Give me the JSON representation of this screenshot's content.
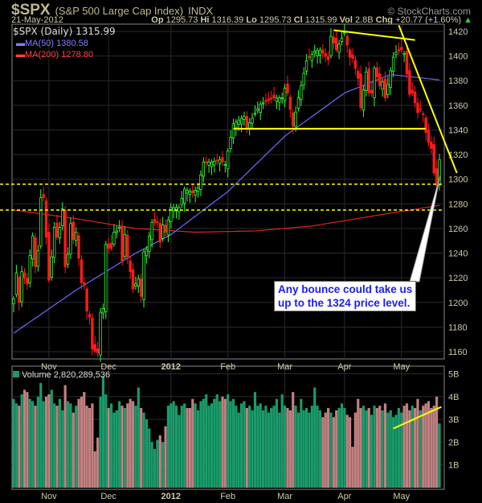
{
  "header": {
    "symbol": "$SPX",
    "name": "(S&P 500 Large Cap Index)",
    "exchange": "INDX",
    "brand": "© StockCharts.com",
    "date": "21-May-2012",
    "op_label": "Op",
    "op": "1295.73",
    "hi_label": "Hi",
    "hi": "1316.39",
    "lo_label": "Lo",
    "lo": "1295.73",
    "cl_label": "Cl",
    "cl": "1315.99",
    "vol_label": "Vol",
    "vol": "2.8B",
    "chg_label": "Chg",
    "chg": "+20.77 (+1.60%)"
  },
  "colors": {
    "up": "#33ff33",
    "down": "#ff1a1a",
    "ma50": "#6b6bff",
    "ma200": "#e02020",
    "annotation": "#ffff00",
    "vol_up": "#1a9a6a",
    "vol_down": "#c08080",
    "callout_text": "#1a1aff"
  },
  "chart_data": [
    {
      "type": "candlestick",
      "title": "$SPX (Daily) 1315.99",
      "legend": [
        {
          "name": "MA(50) 1380.58"
        },
        {
          "name": "MA(200) 1278.80"
        }
      ],
      "ylim": [
        1150,
        1430
      ],
      "yticks": [
        1160,
        1180,
        1200,
        1220,
        1240,
        1260,
        1280,
        1300,
        1320,
        1340,
        1360,
        1380,
        1400,
        1420
      ],
      "xticks": [
        {
          "label": "Nov",
          "date": "2011-11-01"
        },
        {
          "label": "Dec",
          "date": "2011-12-01"
        },
        {
          "label": "2012",
          "date": "2012-01-03"
        },
        {
          "label": "Feb",
          "date": "2012-02-01"
        },
        {
          "label": "Mar",
          "date": "2012-03-01"
        },
        {
          "label": "Apr",
          "date": "2012-04-02"
        },
        {
          "label": "May",
          "date": "2012-05-01"
        }
      ],
      "start": "2011-10-13",
      "end": "2012-05-21",
      "grid": true,
      "close_points": [
        [
          "2011-10-13",
          1203
        ],
        [
          "2011-10-14",
          1224
        ],
        [
          "2011-10-17",
          1200
        ],
        [
          "2011-10-18",
          1225
        ],
        [
          "2011-10-20",
          1215
        ],
        [
          "2011-10-21",
          1238
        ],
        [
          "2011-10-24",
          1254
        ],
        [
          "2011-10-25",
          1229
        ],
        [
          "2011-10-26",
          1242
        ],
        [
          "2011-10-27",
          1285
        ],
        [
          "2011-10-28",
          1285
        ],
        [
          "2011-10-31",
          1253
        ],
        [
          "2011-11-01",
          1218
        ],
        [
          "2011-11-02",
          1237
        ],
        [
          "2011-11-03",
          1261
        ],
        [
          "2011-11-04",
          1253
        ],
        [
          "2011-11-07",
          1261
        ],
        [
          "2011-11-08",
          1276
        ],
        [
          "2011-11-09",
          1229
        ],
        [
          "2011-11-10",
          1239
        ],
        [
          "2011-11-11",
          1264
        ],
        [
          "2011-11-14",
          1251
        ],
        [
          "2011-11-15",
          1257
        ],
        [
          "2011-11-16",
          1236
        ],
        [
          "2011-11-17",
          1216
        ],
        [
          "2011-11-18",
          1215
        ],
        [
          "2011-11-21",
          1193
        ],
        [
          "2011-11-22",
          1188
        ],
        [
          "2011-11-23",
          1162
        ],
        [
          "2011-11-25",
          1159
        ],
        [
          "2011-11-28",
          1192
        ],
        [
          "2011-11-29",
          1195
        ],
        [
          "2011-11-30",
          1247
        ],
        [
          "2011-12-01",
          1244
        ],
        [
          "2011-12-02",
          1244
        ],
        [
          "2011-12-05",
          1257
        ],
        [
          "2011-12-06",
          1258
        ],
        [
          "2011-12-07",
          1261
        ],
        [
          "2011-12-08",
          1234
        ],
        [
          "2011-12-09",
          1255
        ],
        [
          "2011-12-12",
          1236
        ],
        [
          "2011-12-13",
          1225
        ],
        [
          "2011-12-14",
          1211
        ],
        [
          "2011-12-15",
          1215
        ],
        [
          "2011-12-16",
          1219
        ],
        [
          "2011-12-19",
          1205
        ],
        [
          "2011-12-20",
          1241
        ],
        [
          "2011-12-21",
          1243
        ],
        [
          "2011-12-22",
          1254
        ],
        [
          "2011-12-23",
          1265
        ],
        [
          "2011-12-27",
          1265
        ],
        [
          "2011-12-28",
          1249
        ],
        [
          "2011-12-29",
          1263
        ],
        [
          "2011-12-30",
          1257
        ],
        [
          "2012-01-03",
          1277
        ],
        [
          "2012-01-06",
          1277
        ],
        [
          "2012-01-10",
          1292
        ],
        [
          "2012-01-13",
          1289
        ],
        [
          "2012-01-17",
          1293
        ],
        [
          "2012-01-19",
          1314
        ],
        [
          "2012-01-24",
          1314
        ],
        [
          "2012-01-27",
          1316
        ],
        [
          "2012-01-31",
          1312
        ],
        [
          "2012-02-03",
          1345
        ],
        [
          "2012-02-09",
          1351
        ],
        [
          "2012-02-10",
          1342
        ],
        [
          "2012-02-17",
          1361
        ],
        [
          "2012-02-24",
          1366
        ],
        [
          "2012-02-29",
          1366
        ],
        [
          "2012-03-01",
          1374
        ],
        [
          "2012-03-02",
          1370
        ],
        [
          "2012-03-06",
          1343
        ],
        [
          "2012-03-08",
          1366
        ],
        [
          "2012-03-13",
          1396
        ],
        [
          "2012-03-16",
          1404
        ],
        [
          "2012-03-20",
          1405
        ],
        [
          "2012-03-23",
          1397
        ],
        [
          "2012-03-26",
          1416
        ],
        [
          "2012-03-28",
          1405
        ],
        [
          "2012-04-02",
          1419
        ],
        [
          "2012-04-04",
          1399
        ],
        [
          "2012-04-05",
          1398
        ],
        [
          "2012-04-09",
          1382
        ],
        [
          "2012-04-10",
          1358
        ],
        [
          "2012-04-12",
          1387
        ],
        [
          "2012-04-13",
          1370
        ],
        [
          "2012-04-16",
          1370
        ],
        [
          "2012-04-17",
          1390
        ],
        [
          "2012-04-19",
          1376
        ],
        [
          "2012-04-20",
          1379
        ],
        [
          "2012-04-23",
          1366
        ],
        [
          "2012-04-26",
          1399
        ],
        [
          "2012-04-27",
          1403
        ],
        [
          "2012-05-01",
          1405
        ],
        [
          "2012-05-02",
          1402
        ],
        [
          "2012-05-04",
          1369
        ],
        [
          "2012-05-07",
          1370
        ],
        [
          "2012-05-09",
          1354
        ],
        [
          "2012-05-10",
          1357
        ],
        [
          "2012-05-11",
          1353
        ],
        [
          "2012-05-14",
          1338
        ],
        [
          "2012-05-15",
          1330
        ],
        [
          "2012-05-16",
          1325
        ],
        [
          "2012-05-17",
          1305
        ],
        [
          "2012-05-18",
          1295
        ],
        [
          "2012-05-21",
          1316
        ]
      ],
      "ma50_points": [
        [
          "2011-10-13",
          1175
        ],
        [
          "2011-11-15",
          1210
        ],
        [
          "2011-12-15",
          1240
        ],
        [
          "2012-01-03",
          1255
        ],
        [
          "2012-02-01",
          1290
        ],
        [
          "2012-03-01",
          1335
        ],
        [
          "2012-04-02",
          1370
        ],
        [
          "2012-04-25",
          1385
        ],
        [
          "2012-05-21",
          1380.58
        ]
      ],
      "ma200_points": [
        [
          "2011-10-13",
          1275
        ],
        [
          "2011-11-15",
          1268
        ],
        [
          "2011-12-15",
          1260
        ],
        [
          "2012-01-15",
          1257
        ],
        [
          "2012-02-15",
          1258
        ],
        [
          "2012-03-15",
          1262
        ],
        [
          "2012-04-15",
          1270
        ],
        [
          "2012-05-21",
          1278.8
        ]
      ],
      "annotations": {
        "support_1341": [
          [
            "2012-02-03",
            1341
          ],
          [
            "2012-05-14",
            1341
          ]
        ],
        "dashed_levels": [
          1296,
          1275
        ],
        "top_trendline": [
          [
            "2012-03-27",
            1421
          ],
          [
            "2012-05-08",
            1413
          ]
        ],
        "steep_trendline": [
          [
            "2012-04-30",
            1425
          ],
          [
            "2012-05-30",
            1305
          ]
        ],
        "callout": {
          "line1": "Any bounce could take us",
          "line2": "up to the 1324 price level."
        }
      }
    },
    {
      "type": "bar",
      "title": "Volume 2,820,289,536",
      "ylim": [
        0,
        5.2
      ],
      "yticks": [
        "1B",
        "2B",
        "3B",
        "4B",
        "5B"
      ],
      "unit": "billions",
      "values": [
        3.9,
        3.7,
        3.6,
        4.1,
        4.3,
        4.2,
        3.9,
        3.8,
        3.6,
        4.0,
        4.6,
        3.8,
        4.0,
        4.1,
        4.3,
        3.7,
        3.6,
        3.9,
        3.4,
        4.5,
        3.8,
        3.7,
        3.3,
        3.6,
        3.9,
        4.0,
        4.2,
        3.6,
        3.5,
        3.7,
        1.6,
        2.2,
        4.0,
        4.9,
        4.1,
        3.5,
        3.7,
        3.3,
        3.4,
        3.8,
        3.6,
        3.5,
        3.7,
        3.9,
        3.8,
        3.6,
        4.4,
        3.5,
        3.3,
        3.0,
        2.6,
        2.0,
        1.7,
        2.1,
        2.3,
        2.0,
        2.7,
        3.6,
        3.7,
        3.8,
        3.6,
        3.2,
        3.6,
        3.7,
        3.5,
        3.5,
        3.9,
        3.7,
        3.4,
        3.8,
        3.9,
        4.1,
        3.6,
        3.7,
        3.9,
        4.1,
        3.8,
        4.0,
        3.9,
        4.1,
        3.8,
        3.9,
        3.6,
        3.3,
        3.7,
        3.8,
        3.5,
        3.6,
        3.4,
        4.2,
        3.6,
        3.7,
        3.4,
        3.6,
        3.3,
        3.5,
        3.6,
        3.9,
        3.3,
        4.1,
        3.6,
        3.5,
        3.4,
        4.2,
        3.6,
        3.3,
        3.9,
        3.4,
        3.5,
        3.3,
        3.6,
        4.4,
        3.6,
        3.4,
        3.1,
        3.3,
        3.5,
        3.3,
        3.1,
        3.4,
        3.5,
        3.7,
        3.5,
        3.2,
        3.1,
        1.8,
        3.3,
        3.9,
        3.5,
        3.6,
        3.4,
        3.5,
        3.2,
        3.6,
        3.5,
        3.6,
        3.4,
        3.7,
        3.3,
        3.4,
        3.1,
        3.2,
        3.5,
        3.3,
        3.6,
        3.7,
        3.4,
        3.6,
        3.5,
        3.9,
        3.4,
        3.6,
        3.7,
        3.8,
        3.5,
        3.6,
        4.0,
        2.82
      ],
      "trendline": [
        [
          "2012-04-26",
          2.6
        ],
        [
          "2012-05-22",
          3.55
        ]
      ]
    }
  ]
}
